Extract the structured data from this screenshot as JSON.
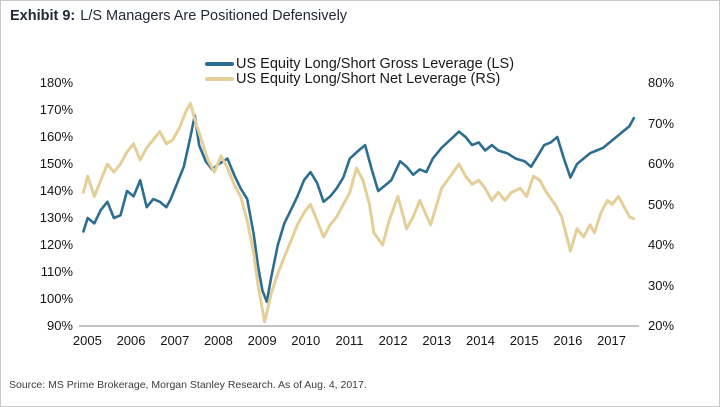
{
  "header": {
    "exhibit_label": "Exhibit 9:",
    "title": "L/S Managers Are Positioned Defensively"
  },
  "source_note": "Source: MS Prime Brokerage, Morgan Stanley Research. As of Aug. 4, 2017.",
  "colors": {
    "gross_line": "#2c6e91",
    "net_line": "#e4cf98",
    "axis_line": "#9e9e9e",
    "tick_text": "#161616"
  },
  "chart_data": {
    "type": "line",
    "title": "L/S Managers Are Positioned Defensively",
    "xlabel": "",
    "legend_position": "top-center",
    "grid": false,
    "x_ticks": [
      "2005",
      "2006",
      "2007",
      "2008",
      "2009",
      "2010",
      "2011",
      "2012",
      "2013",
      "2014",
      "2015",
      "2016",
      "2017"
    ],
    "left_axis": {
      "min": 90,
      "max": 180,
      "ticks": [
        "180%",
        "170%",
        "160%",
        "150%",
        "140%",
        "130%",
        "120%",
        "110%",
        "100%",
        "90%"
      ]
    },
    "right_axis": {
      "min": 20,
      "max": 80,
      "ticks": [
        "80%",
        "70%",
        "60%",
        "50%",
        "40%",
        "30%",
        "20%"
      ]
    },
    "series": [
      {
        "name": "US Equity Long/Short Gross Leverage (LS)",
        "axis": "left",
        "color": "#2c6e91",
        "width": 2.6,
        "points": [
          [
            2005.0,
            125
          ],
          [
            2005.1,
            130
          ],
          [
            2005.25,
            128
          ],
          [
            2005.4,
            133
          ],
          [
            2005.55,
            136
          ],
          [
            2005.7,
            130
          ],
          [
            2005.85,
            131
          ],
          [
            2006.0,
            140
          ],
          [
            2006.15,
            138
          ],
          [
            2006.3,
            144
          ],
          [
            2006.45,
            134
          ],
          [
            2006.6,
            137
          ],
          [
            2006.75,
            136
          ],
          [
            2006.9,
            134
          ],
          [
            2007.0,
            137
          ],
          [
            2007.15,
            143
          ],
          [
            2007.3,
            149
          ],
          [
            2007.45,
            160
          ],
          [
            2007.55,
            168
          ],
          [
            2007.65,
            157
          ],
          [
            2007.8,
            151
          ],
          [
            2007.95,
            148
          ],
          [
            2008.1,
            150
          ],
          [
            2008.3,
            152
          ],
          [
            2008.45,
            146
          ],
          [
            2008.6,
            141
          ],
          [
            2008.75,
            137
          ],
          [
            2008.9,
            124
          ],
          [
            2009.0,
            112
          ],
          [
            2009.1,
            103
          ],
          [
            2009.2,
            99
          ],
          [
            2009.3,
            108
          ],
          [
            2009.45,
            120
          ],
          [
            2009.6,
            128
          ],
          [
            2009.75,
            133
          ],
          [
            2009.9,
            138
          ],
          [
            2010.05,
            144
          ],
          [
            2010.2,
            147
          ],
          [
            2010.35,
            143
          ],
          [
            2010.5,
            136
          ],
          [
            2010.65,
            138
          ],
          [
            2010.8,
            141
          ],
          [
            2010.95,
            145
          ],
          [
            2011.1,
            152
          ],
          [
            2011.3,
            155
          ],
          [
            2011.45,
            157
          ],
          [
            2011.6,
            148
          ],
          [
            2011.75,
            140
          ],
          [
            2011.9,
            142
          ],
          [
            2012.05,
            144
          ],
          [
            2012.25,
            151
          ],
          [
            2012.4,
            149
          ],
          [
            2012.55,
            146
          ],
          [
            2012.7,
            148
          ],
          [
            2012.85,
            147
          ],
          [
            2013.0,
            152
          ],
          [
            2013.2,
            156
          ],
          [
            2013.4,
            159
          ],
          [
            2013.6,
            162
          ],
          [
            2013.75,
            160
          ],
          [
            2013.9,
            157
          ],
          [
            2014.05,
            158
          ],
          [
            2014.2,
            155
          ],
          [
            2014.35,
            157
          ],
          [
            2014.5,
            155
          ],
          [
            2014.7,
            154
          ],
          [
            2014.9,
            152
          ],
          [
            2015.1,
            151
          ],
          [
            2015.25,
            149
          ],
          [
            2015.4,
            153
          ],
          [
            2015.55,
            157
          ],
          [
            2015.7,
            158
          ],
          [
            2015.85,
            160
          ],
          [
            2016.0,
            152
          ],
          [
            2016.15,
            145
          ],
          [
            2016.3,
            150
          ],
          [
            2016.45,
            152
          ],
          [
            2016.6,
            154
          ],
          [
            2016.75,
            155
          ],
          [
            2016.9,
            156
          ],
          [
            2017.05,
            158
          ],
          [
            2017.2,
            160
          ],
          [
            2017.35,
            162
          ],
          [
            2017.5,
            164
          ],
          [
            2017.6,
            167
          ]
        ]
      },
      {
        "name": "US Equity Long/Short Net Leverage (RS)",
        "axis": "right",
        "color": "#e4cf98",
        "width": 3,
        "points": [
          [
            2005.0,
            53
          ],
          [
            2005.1,
            57
          ],
          [
            2005.25,
            52
          ],
          [
            2005.4,
            56
          ],
          [
            2005.55,
            60
          ],
          [
            2005.7,
            58
          ],
          [
            2005.85,
            60
          ],
          [
            2006.0,
            63
          ],
          [
            2006.15,
            65
          ],
          [
            2006.3,
            61
          ],
          [
            2006.45,
            64
          ],
          [
            2006.6,
            66
          ],
          [
            2006.75,
            68
          ],
          [
            2006.9,
            65
          ],
          [
            2007.05,
            66
          ],
          [
            2007.2,
            69
          ],
          [
            2007.35,
            73
          ],
          [
            2007.45,
            75
          ],
          [
            2007.55,
            71
          ],
          [
            2007.7,
            66
          ],
          [
            2007.85,
            61
          ],
          [
            2008.0,
            58
          ],
          [
            2008.15,
            62
          ],
          [
            2008.3,
            59
          ],
          [
            2008.45,
            55
          ],
          [
            2008.6,
            52
          ],
          [
            2008.75,
            46
          ],
          [
            2008.9,
            38
          ],
          [
            2009.0,
            30
          ],
          [
            2009.15,
            21
          ],
          [
            2009.3,
            28
          ],
          [
            2009.45,
            33
          ],
          [
            2009.6,
            37
          ],
          [
            2009.75,
            41
          ],
          [
            2009.9,
            45
          ],
          [
            2010.05,
            48
          ],
          [
            2010.2,
            50
          ],
          [
            2010.35,
            46
          ],
          [
            2010.5,
            42
          ],
          [
            2010.65,
            45
          ],
          [
            2010.8,
            47
          ],
          [
            2010.95,
            50
          ],
          [
            2011.1,
            53
          ],
          [
            2011.25,
            59
          ],
          [
            2011.4,
            56
          ],
          [
            2011.55,
            50
          ],
          [
            2011.65,
            43
          ],
          [
            2011.85,
            40
          ],
          [
            2012.0,
            46
          ],
          [
            2012.2,
            52
          ],
          [
            2012.4,
            44
          ],
          [
            2012.55,
            47
          ],
          [
            2012.7,
            51
          ],
          [
            2012.95,
            45
          ],
          [
            2013.2,
            54
          ],
          [
            2013.4,
            57
          ],
          [
            2013.6,
            60
          ],
          [
            2013.75,
            57
          ],
          [
            2013.9,
            55
          ],
          [
            2014.05,
            56
          ],
          [
            2014.2,
            54
          ],
          [
            2014.35,
            51
          ],
          [
            2014.5,
            53
          ],
          [
            2014.65,
            51
          ],
          [
            2014.8,
            53
          ],
          [
            2015.0,
            54
          ],
          [
            2015.15,
            52
          ],
          [
            2015.3,
            57
          ],
          [
            2015.45,
            56
          ],
          [
            2015.6,
            53
          ],
          [
            2015.8,
            50
          ],
          [
            2015.95,
            47
          ],
          [
            2016.15,
            38.5
          ],
          [
            2016.3,
            44
          ],
          [
            2016.45,
            42
          ],
          [
            2016.6,
            45
          ],
          [
            2016.7,
            43
          ],
          [
            2016.85,
            48
          ],
          [
            2017.0,
            51
          ],
          [
            2017.1,
            50
          ],
          [
            2017.25,
            52
          ],
          [
            2017.4,
            49
          ],
          [
            2017.5,
            47
          ],
          [
            2017.6,
            46.5
          ]
        ]
      }
    ]
  }
}
